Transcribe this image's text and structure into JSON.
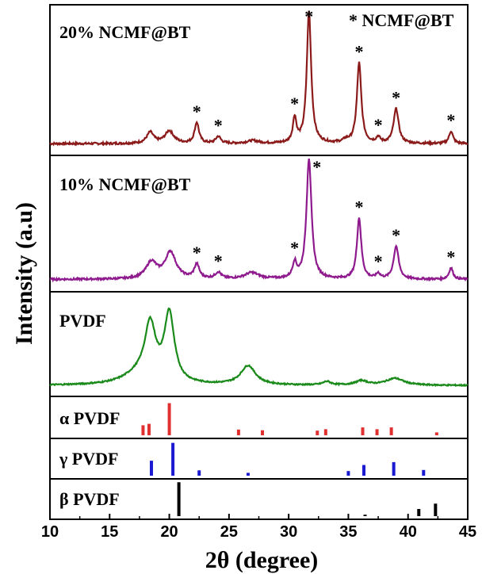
{
  "chart_data": {
    "type": "line",
    "xlabel": "2θ (degree)",
    "ylabel": "Intensity (a.u)",
    "xlim": [
      10,
      45
    ],
    "xticks": [
      "10",
      "15",
      "20",
      "25",
      "30",
      "35",
      "40",
      "45"
    ],
    "legend_note": "* NCMF@BT",
    "star_symbol": "*",
    "panels": [
      {
        "key": "p20",
        "label": "20% NCMF@BT",
        "color": "#8b1a1a",
        "series": [
          {
            "name": "20% NCMF@BT",
            "baseline": 0.05,
            "peaks": [
              {
                "x": 18.4,
                "h": 0.08,
                "w": 0.35
              },
              {
                "x": 20.0,
                "h": 0.09,
                "w": 0.45
              },
              {
                "x": 22.3,
                "h": 0.15,
                "w": 0.22
              },
              {
                "x": 24.1,
                "h": 0.05,
                "w": 0.25
              },
              {
                "x": 27.0,
                "h": 0.02,
                "w": 0.6
              },
              {
                "x": 30.5,
                "h": 0.18,
                "w": 0.18
              },
              {
                "x": 31.7,
                "h": 0.95,
                "w": 0.22
              },
              {
                "x": 34.8,
                "h": 0.02,
                "w": 0.3
              },
              {
                "x": 35.9,
                "h": 0.58,
                "w": 0.22
              },
              {
                "x": 37.5,
                "h": 0.04,
                "w": 0.2
              },
              {
                "x": 39.0,
                "h": 0.25,
                "w": 0.25
              },
              {
                "x": 43.6,
                "h": 0.09,
                "w": 0.2
              }
            ]
          }
        ],
        "stars": [
          22.3,
          24.1,
          30.5,
          31.7,
          35.9,
          37.5,
          39.0,
          43.6
        ]
      },
      {
        "key": "p10",
        "label": "10% NCMF@BT",
        "color": "#8e1a8e",
        "series": [
          {
            "name": "10% NCMF@BT",
            "baseline": 0.06,
            "peaks": [
              {
                "x": 18.5,
                "h": 0.13,
                "w": 0.55
              },
              {
                "x": 20.1,
                "h": 0.21,
                "w": 0.55
              },
              {
                "x": 22.3,
                "h": 0.11,
                "w": 0.25
              },
              {
                "x": 24.1,
                "h": 0.05,
                "w": 0.3
              },
              {
                "x": 26.9,
                "h": 0.05,
                "w": 0.7
              },
              {
                "x": 30.5,
                "h": 0.12,
                "w": 0.2
              },
              {
                "x": 31.7,
                "h": 0.95,
                "w": 0.25
              },
              {
                "x": 35.9,
                "h": 0.48,
                "w": 0.22
              },
              {
                "x": 37.5,
                "h": 0.04,
                "w": 0.2
              },
              {
                "x": 39.0,
                "h": 0.26,
                "w": 0.25
              },
              {
                "x": 43.6,
                "h": 0.09,
                "w": 0.2
              }
            ]
          }
        ],
        "stars": [
          22.3,
          24.1,
          30.5,
          31.7,
          35.9,
          37.5,
          39.0,
          43.6
        ]
      },
      {
        "key": "pvdf",
        "label": "PVDF",
        "color": "#1a8a1a",
        "series": [
          {
            "name": "PVDF",
            "baseline": 0.07,
            "peaks": [
              {
                "x": 18.4,
                "h": 0.62,
                "w": 0.55
              },
              {
                "x": 20.0,
                "h": 0.78,
                "w": 0.5
              },
              {
                "x": 17.5,
                "h": 0.12,
                "w": 1.6
              },
              {
                "x": 26.6,
                "h": 0.22,
                "w": 0.75
              },
              {
                "x": 33.2,
                "h": 0.04,
                "w": 0.4
              },
              {
                "x": 36.1,
                "h": 0.05,
                "w": 0.6
              },
              {
                "x": 38.9,
                "h": 0.08,
                "w": 0.9
              }
            ]
          }
        ]
      },
      {
        "key": "alpha",
        "label": "α PVDF",
        "color": "#e03030",
        "bars": [
          {
            "x": 17.8,
            "h": 0.28
          },
          {
            "x": 18.3,
            "h": 0.32
          },
          {
            "x": 20.0,
            "h": 0.9
          },
          {
            "x": 25.8,
            "h": 0.16
          },
          {
            "x": 27.8,
            "h": 0.14
          },
          {
            "x": 32.4,
            "h": 0.13
          },
          {
            "x": 33.1,
            "h": 0.17
          },
          {
            "x": 36.2,
            "h": 0.22
          },
          {
            "x": 37.4,
            "h": 0.17
          },
          {
            "x": 38.6,
            "h": 0.22
          },
          {
            "x": 42.4,
            "h": 0.08
          }
        ]
      },
      {
        "key": "gamma",
        "label": "γ PVDF",
        "color": "#1a1ad0",
        "bars": [
          {
            "x": 18.5,
            "h": 0.42
          },
          {
            "x": 20.3,
            "h": 0.92
          },
          {
            "x": 22.5,
            "h": 0.15
          },
          {
            "x": 26.6,
            "h": 0.08
          },
          {
            "x": 35.0,
            "h": 0.13
          },
          {
            "x": 36.3,
            "h": 0.3
          },
          {
            "x": 38.8,
            "h": 0.38
          },
          {
            "x": 41.3,
            "h": 0.16
          }
        ]
      },
      {
        "key": "beta",
        "label": "β PVDF",
        "color": "#000000",
        "bars": [
          {
            "x": 20.8,
            "h": 0.95
          },
          {
            "x": 36.4,
            "h": 0.04
          },
          {
            "x": 40.9,
            "h": 0.2
          },
          {
            "x": 42.3,
            "h": 0.35
          }
        ]
      }
    ]
  }
}
